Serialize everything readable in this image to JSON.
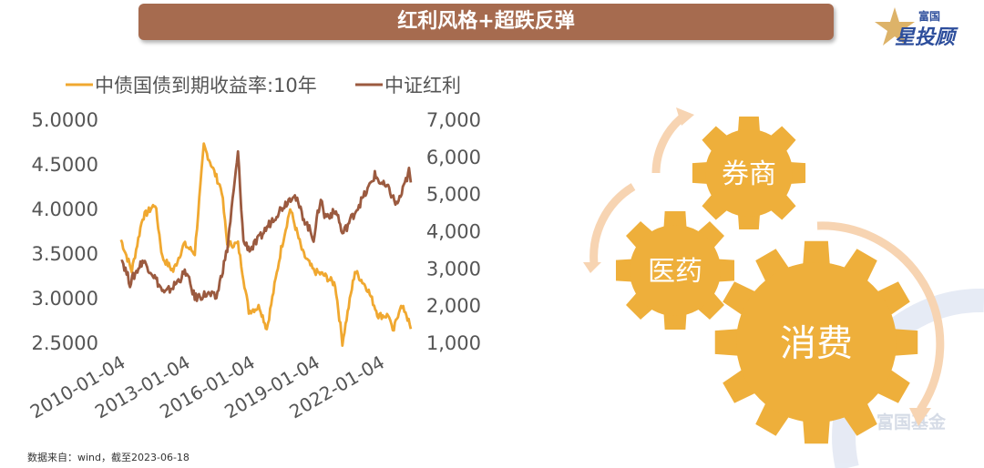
{
  "banner": {
    "title": "红利风格+超跌反弹"
  },
  "logo": {
    "top": "富国",
    "main": "星投顾"
  },
  "watermark": "富国基金",
  "footer": "数据来自：wind，截至2023-06-18",
  "colors": {
    "banner": "#a66b4f",
    "yield": "#f0a830",
    "index": "#9b5a3f",
    "gear": "#eeaf3b",
    "arrow": "#f7d4b2"
  },
  "gears": [
    {
      "label": "券商"
    },
    {
      "label": "医药"
    },
    {
      "label": "消费"
    }
  ],
  "chart_data": {
    "type": "line",
    "legend_position": "top",
    "grid": false,
    "x_ticks": [
      "2010-01-04",
      "2013-01-04",
      "2016-01-04",
      "2019-01-04",
      "2022-01-04"
    ],
    "xlim": [
      "2010-01-04",
      "2023-06-18"
    ],
    "y_left": {
      "ylim": [
        2.5,
        5.0
      ],
      "ticks": [
        "2.5000",
        "3.0000",
        "3.5000",
        "4.0000",
        "4.5000",
        "5.0000"
      ]
    },
    "y_right": {
      "ylim": [
        1000,
        7000
      ],
      "ticks": [
        "1,000",
        "2,000",
        "3,000",
        "4,000",
        "5,000",
        "6,000",
        "7,000"
      ]
    },
    "series": [
      {
        "name": "中债国债到期收益率:10年",
        "axis": "left",
        "x": [
          "2010-01",
          "2010-07",
          "2011-01",
          "2011-08",
          "2011-12",
          "2012-06",
          "2012-12",
          "2013-06",
          "2013-11",
          "2014-03",
          "2014-09",
          "2014-12",
          "2015-06",
          "2015-12",
          "2016-06",
          "2016-10",
          "2017-06",
          "2017-11",
          "2018-06",
          "2018-12",
          "2019-06",
          "2019-12",
          "2020-04",
          "2020-11",
          "2021-06",
          "2021-12",
          "2022-06",
          "2022-08",
          "2022-12",
          "2023-03",
          "2023-06"
        ],
        "values": [
          3.65,
          3.3,
          3.9,
          4.05,
          3.45,
          3.3,
          3.6,
          3.5,
          4.7,
          4.5,
          4.2,
          3.6,
          3.6,
          2.85,
          2.9,
          2.65,
          3.55,
          4.0,
          3.5,
          3.3,
          3.25,
          3.15,
          2.5,
          3.3,
          3.1,
          2.8,
          2.8,
          2.6,
          2.9,
          2.85,
          2.65
        ]
      },
      {
        "name": "中证红利",
        "axis": "right",
        "x": [
          "2010-01",
          "2010-06",
          "2011-01",
          "2011-06",
          "2012-01",
          "2012-06",
          "2013-01",
          "2013-06",
          "2014-01",
          "2014-06",
          "2014-12",
          "2015-06",
          "2015-09",
          "2016-01",
          "2016-06",
          "2017-01",
          "2017-06",
          "2018-01",
          "2018-06",
          "2018-12",
          "2019-04",
          "2019-06",
          "2020-01",
          "2020-04",
          "2020-12",
          "2021-06",
          "2021-10",
          "2022-01",
          "2022-06",
          "2022-10",
          "2023-01",
          "2023-05",
          "2023-06"
        ],
        "values": [
          3300,
          2600,
          3200,
          2900,
          2300,
          2500,
          2900,
          2200,
          2300,
          2200,
          3500,
          6100,
          3700,
          3500,
          3800,
          4300,
          4600,
          5000,
          4400,
          3800,
          4900,
          4400,
          4500,
          3900,
          4600,
          5100,
          5500,
          5300,
          5100,
          4700,
          5000,
          5600,
          5300
        ]
      }
    ]
  }
}
